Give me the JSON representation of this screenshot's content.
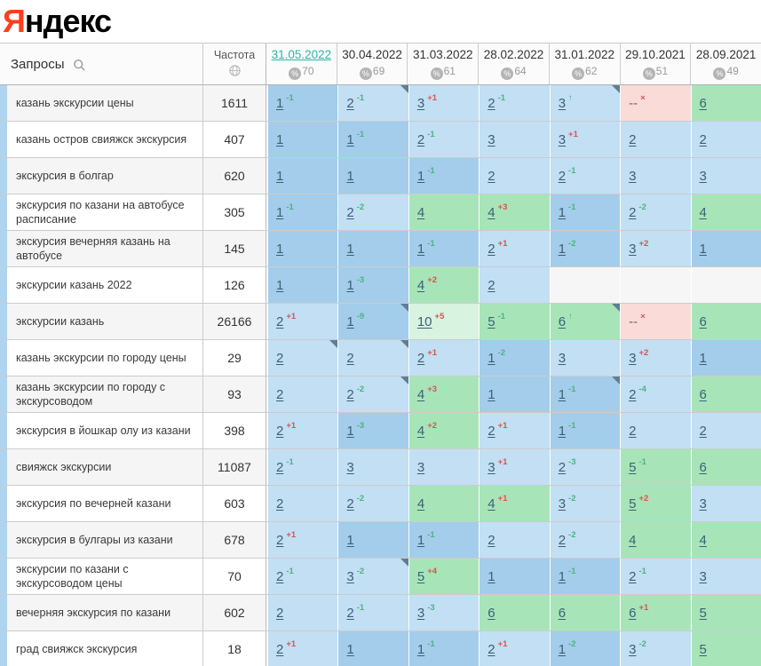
{
  "logo": {
    "first_letter": "Я",
    "rest": "ндекс",
    "brand_red": "#fc3f1d"
  },
  "table": {
    "queries_header": "Запросы",
    "frequency_header": "Частота",
    "columns": [
      {
        "date": "31.05.2022",
        "percent": "70",
        "active": true
      },
      {
        "date": "30.04.2022",
        "percent": "69",
        "active": false
      },
      {
        "date": "31.03.2022",
        "percent": "61",
        "active": false
      },
      {
        "date": "28.02.2022",
        "percent": "64",
        "active": false
      },
      {
        "date": "31.01.2022",
        "percent": "62",
        "active": false
      },
      {
        "date": "29.10.2021",
        "percent": "51",
        "active": false
      },
      {
        "date": "28.09.2021",
        "percent": "49",
        "active": false
      }
    ],
    "colors": {
      "position_1": "#a3cdea",
      "position_2_3": "#c2dff4",
      "position_4_9": "#a7e5b9",
      "position_10": "#d8f3df",
      "dropped": "#fadbd7",
      "empty": "#f6f6f6",
      "delta_up": "#4db380",
      "delta_down": "#d9534f",
      "active_date": "#2cb5a8"
    },
    "rows": [
      {
        "query": "казань экскурсии цены",
        "frequency": "1611",
        "cells": [
          {
            "p": "1",
            "d": "-1",
            "c": "g",
            "b": "b1"
          },
          {
            "p": "2",
            "d": "-1",
            "c": "g",
            "b": "b2",
            "n": true
          },
          {
            "p": "3",
            "d": "+1",
            "c": "r",
            "b": "b2"
          },
          {
            "p": "2",
            "d": "-1",
            "c": "g",
            "b": "b2"
          },
          {
            "p": "3",
            "d": "↑",
            "c": "g",
            "b": "b2",
            "n": true
          },
          {
            "p": "--",
            "d": "×",
            "c": "r",
            "b": "pk"
          },
          {
            "p": "6",
            "b": "g"
          }
        ]
      },
      {
        "query": "казань остров свияжск экскурсия",
        "frequency": "407",
        "cells": [
          {
            "p": "1",
            "b": "b1"
          },
          {
            "p": "1",
            "d": "-1",
            "c": "g",
            "b": "b1"
          },
          {
            "p": "2",
            "d": "-1",
            "c": "g",
            "b": "b2"
          },
          {
            "p": "3",
            "b": "b2"
          },
          {
            "p": "3",
            "d": "+1",
            "c": "r",
            "b": "b2"
          },
          {
            "p": "2",
            "b": "b2"
          },
          {
            "p": "2",
            "b": "b2"
          }
        ]
      },
      {
        "query": "экскурсия в болгар",
        "frequency": "620",
        "cells": [
          {
            "p": "1",
            "b": "b1"
          },
          {
            "p": "1",
            "b": "b1"
          },
          {
            "p": "1",
            "d": "-1",
            "c": "g",
            "b": "b1"
          },
          {
            "p": "2",
            "b": "b2"
          },
          {
            "p": "2",
            "d": "-1",
            "c": "g",
            "b": "b2"
          },
          {
            "p": "3",
            "b": "b2"
          },
          {
            "p": "3",
            "b": "b2"
          }
        ]
      },
      {
        "query": "экскурсия по казани на автобусе расписание",
        "frequency": "305",
        "cells": [
          {
            "p": "1",
            "d": "-1",
            "c": "g",
            "b": "b1"
          },
          {
            "p": "2",
            "d": "-2",
            "c": "g",
            "b": "b2"
          },
          {
            "p": "4",
            "b": "g"
          },
          {
            "p": "4",
            "d": "+3",
            "c": "r",
            "b": "g"
          },
          {
            "p": "1",
            "d": "-1",
            "c": "g",
            "b": "b1"
          },
          {
            "p": "2",
            "d": "-2",
            "c": "g",
            "b": "b2"
          },
          {
            "p": "4",
            "b": "g"
          }
        ]
      },
      {
        "query": "экскурсия вечерняя казань на автобусе",
        "frequency": "145",
        "cells": [
          {
            "p": "1",
            "b": "b1"
          },
          {
            "p": "1",
            "b": "b1"
          },
          {
            "p": "1",
            "d": "-1",
            "c": "g",
            "b": "b1"
          },
          {
            "p": "2",
            "d": "+1",
            "c": "r",
            "b": "b2"
          },
          {
            "p": "1",
            "d": "-2",
            "c": "g",
            "b": "b1"
          },
          {
            "p": "3",
            "d": "+2",
            "c": "r",
            "b": "b2"
          },
          {
            "p": "1",
            "b": "b1"
          }
        ]
      },
      {
        "query": "экскурсии казань 2022",
        "frequency": "126",
        "cells": [
          {
            "p": "1",
            "b": "b1"
          },
          {
            "p": "1",
            "d": "-3",
            "c": "g",
            "b": "b1"
          },
          {
            "p": "4",
            "d": "+2",
            "c": "r",
            "b": "g"
          },
          {
            "p": "2",
            "b": "b2"
          },
          {
            "p": "",
            "b": "e"
          },
          {
            "p": "",
            "b": "e"
          },
          {
            "p": "",
            "b": "e"
          }
        ]
      },
      {
        "query": "экскурсии казань",
        "frequency": "26166",
        "cells": [
          {
            "p": "2",
            "d": "+1",
            "c": "r",
            "b": "b2"
          },
          {
            "p": "1",
            "d": "-9",
            "c": "g",
            "b": "b1",
            "n": true
          },
          {
            "p": "10",
            "d": "+5",
            "c": "r",
            "b": "gp"
          },
          {
            "p": "5",
            "d": "-1",
            "c": "g",
            "b": "g"
          },
          {
            "p": "6",
            "d": "↑",
            "c": "g",
            "b": "g",
            "n": true
          },
          {
            "p": "--",
            "d": "×",
            "c": "r",
            "b": "pk"
          },
          {
            "p": "6",
            "b": "g"
          }
        ]
      },
      {
        "query": "казань экскурсии по городу цены",
        "frequency": "29",
        "cells": [
          {
            "p": "2",
            "b": "b2",
            "n": true
          },
          {
            "p": "2",
            "b": "b2",
            "n": true
          },
          {
            "p": "2",
            "d": "+1",
            "c": "r",
            "b": "b2"
          },
          {
            "p": "1",
            "d": "-2",
            "c": "g",
            "b": "b1"
          },
          {
            "p": "3",
            "b": "b2"
          },
          {
            "p": "3",
            "d": "+2",
            "c": "r",
            "b": "b2"
          },
          {
            "p": "1",
            "b": "b1"
          }
        ]
      },
      {
        "query": "казань экскурсии по городу с экскурсоводом",
        "frequency": "93",
        "cells": [
          {
            "p": "2",
            "b": "b2"
          },
          {
            "p": "2",
            "d": "-2",
            "c": "g",
            "b": "b2",
            "n": true
          },
          {
            "p": "4",
            "d": "+3",
            "c": "r",
            "b": "g"
          },
          {
            "p": "1",
            "b": "b1"
          },
          {
            "p": "1",
            "d": "-1",
            "c": "g",
            "b": "b1",
            "n": true
          },
          {
            "p": "2",
            "d": "-4",
            "c": "g",
            "b": "b2"
          },
          {
            "p": "6",
            "b": "g"
          }
        ]
      },
      {
        "query": "экскурсия в йошкар олу из казани",
        "frequency": "398",
        "cells": [
          {
            "p": "2",
            "d": "+1",
            "c": "r",
            "b": "b2"
          },
          {
            "p": "1",
            "d": "-3",
            "c": "g",
            "b": "b1"
          },
          {
            "p": "4",
            "d": "+2",
            "c": "r",
            "b": "g"
          },
          {
            "p": "2",
            "d": "+1",
            "c": "r",
            "b": "b2"
          },
          {
            "p": "1",
            "d": "-1",
            "c": "g",
            "b": "b1"
          },
          {
            "p": "2",
            "b": "b2"
          },
          {
            "p": "2",
            "b": "b2"
          }
        ]
      },
      {
        "query": "свияжск экскурсии",
        "frequency": "11087",
        "cells": [
          {
            "p": "2",
            "d": "-1",
            "c": "g",
            "b": "b2"
          },
          {
            "p": "3",
            "b": "b2"
          },
          {
            "p": "3",
            "b": "b2"
          },
          {
            "p": "3",
            "d": "+1",
            "c": "r",
            "b": "b2"
          },
          {
            "p": "2",
            "d": "-3",
            "c": "g",
            "b": "b2"
          },
          {
            "p": "5",
            "d": "-1",
            "c": "g",
            "b": "g"
          },
          {
            "p": "6",
            "b": "g"
          }
        ]
      },
      {
        "query": "экскурсия по вечерней казани",
        "frequency": "603",
        "cells": [
          {
            "p": "2",
            "b": "b2"
          },
          {
            "p": "2",
            "d": "-2",
            "c": "g",
            "b": "b2"
          },
          {
            "p": "4",
            "b": "g"
          },
          {
            "p": "4",
            "d": "+1",
            "c": "r",
            "b": "g"
          },
          {
            "p": "3",
            "d": "-2",
            "c": "g",
            "b": "b2"
          },
          {
            "p": "5",
            "d": "+2",
            "c": "r",
            "b": "g"
          },
          {
            "p": "3",
            "b": "b2"
          }
        ]
      },
      {
        "query": "экскурсия в булгары из казани",
        "frequency": "678",
        "cells": [
          {
            "p": "2",
            "d": "+1",
            "c": "r",
            "b": "b2"
          },
          {
            "p": "1",
            "b": "b1"
          },
          {
            "p": "1",
            "d": "-1",
            "c": "g",
            "b": "b1"
          },
          {
            "p": "2",
            "b": "b2"
          },
          {
            "p": "2",
            "d": "-2",
            "c": "g",
            "b": "b2"
          },
          {
            "p": "4",
            "b": "g"
          },
          {
            "p": "4",
            "b": "g"
          }
        ]
      },
      {
        "query": "экскурсии по казани с экскурсоводом цены",
        "frequency": "70",
        "cells": [
          {
            "p": "2",
            "d": "-1",
            "c": "g",
            "b": "b2"
          },
          {
            "p": "3",
            "d": "-2",
            "c": "g",
            "b": "b2",
            "n": true
          },
          {
            "p": "5",
            "d": "+4",
            "c": "r",
            "b": "g"
          },
          {
            "p": "1",
            "b": "b1"
          },
          {
            "p": "1",
            "d": "-1",
            "c": "g",
            "b": "b1"
          },
          {
            "p": "2",
            "d": "-1",
            "c": "g",
            "b": "b2"
          },
          {
            "p": "3",
            "b": "b2"
          }
        ]
      },
      {
        "query": "вечерняя экскурсия по казани",
        "frequency": "602",
        "cells": [
          {
            "p": "2",
            "b": "b2"
          },
          {
            "p": "2",
            "d": "-1",
            "c": "g",
            "b": "b2"
          },
          {
            "p": "3",
            "d": "-3",
            "c": "g",
            "b": "b2"
          },
          {
            "p": "6",
            "b": "g"
          },
          {
            "p": "6",
            "b": "g"
          },
          {
            "p": "6",
            "d": "+1",
            "c": "r",
            "b": "g"
          },
          {
            "p": "5",
            "b": "g"
          }
        ]
      },
      {
        "query": "град свияжск экскурсия",
        "frequency": "18",
        "cells": [
          {
            "p": "2",
            "d": "+1",
            "c": "r",
            "b": "b2"
          },
          {
            "p": "1",
            "b": "b1"
          },
          {
            "p": "1",
            "d": "-1",
            "c": "g",
            "b": "b1"
          },
          {
            "p": "2",
            "d": "+1",
            "c": "r",
            "b": "b2"
          },
          {
            "p": "1",
            "d": "-2",
            "c": "g",
            "b": "b1"
          },
          {
            "p": "3",
            "d": "-2",
            "c": "g",
            "b": "b2"
          },
          {
            "p": "5",
            "b": "g"
          }
        ]
      }
    ]
  }
}
